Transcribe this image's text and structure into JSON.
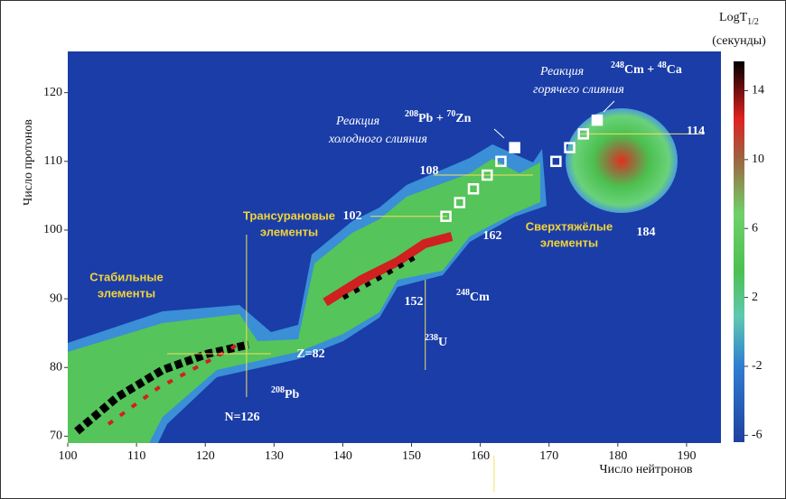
{
  "chart_data": {
    "type": "heatmap",
    "x_label": "Число нейтронов",
    "y_label": "Число протонов",
    "xlim": [
      100,
      195
    ],
    "ylim": [
      69,
      126
    ],
    "xticks": [
      100,
      110,
      120,
      130,
      140,
      150,
      160,
      170,
      180,
      190
    ],
    "yticks": [
      70,
      80,
      90,
      100,
      110,
      120
    ],
    "colorbar": {
      "title": "LogT",
      "title_sub": "1/2",
      "subtitle": "(секунды)",
      "lim": [
        -6.4,
        15.7
      ],
      "ticks": [
        -6,
        -2,
        2,
        6,
        10,
        14
      ]
    },
    "magic": [
      {
        "label": "Z=82",
        "axis": "y",
        "value": 82
      },
      {
        "label": "N=126",
        "axis": "x",
        "value": 126
      },
      {
        "label": "152",
        "axis": "x",
        "value": 152
      },
      {
        "label": "162",
        "axis": "x",
        "value": 162
      },
      {
        "label": "102",
        "axis": "y",
        "value": 102
      },
      {
        "label": "108",
        "axis": "y",
        "value": 108
      },
      {
        "label": "114",
        "axis": "y",
        "value": 114
      },
      {
        "label": "184",
        "axis": "x",
        "value": 184
      }
    ],
    "region_labels": [
      [
        "Стабильные",
        "элементы"
      ],
      [
        "Трансурановые",
        "элементы"
      ],
      [
        "Сверхтяжёлые",
        "элементы"
      ]
    ],
    "isotopes": [
      {
        "mass": "208",
        "symbol": "Pb"
      },
      {
        "mass": "238",
        "symbol": "U"
      },
      {
        "mass": "248",
        "symbol": "Cm"
      }
    ],
    "reactions": [
      {
        "lines": [
          "Реакция",
          "холодного слияния"
        ],
        "a_mass": "208",
        "a": "Pb + ",
        "b_mass": "70",
        "b": "Zn"
      },
      {
        "lines": [
          "Реакция",
          "горячего слияния"
        ],
        "a_mass": "248",
        "a": "Cm + ",
        "b_mass": "48",
        "b": "Ca"
      }
    ],
    "series": [
      {
        "name": "cold",
        "x": [
          155,
          157,
          159,
          161,
          163
        ],
        "values": [
          102,
          104,
          106,
          108,
          110
        ]
      },
      {
        "name": "hot",
        "x": [
          171,
          173,
          175
        ],
        "values": [
          110,
          112,
          114
        ]
      },
      {
        "name": "new",
        "x": [
          165,
          177
        ],
        "values": [
          112,
          116
        ]
      }
    ]
  }
}
